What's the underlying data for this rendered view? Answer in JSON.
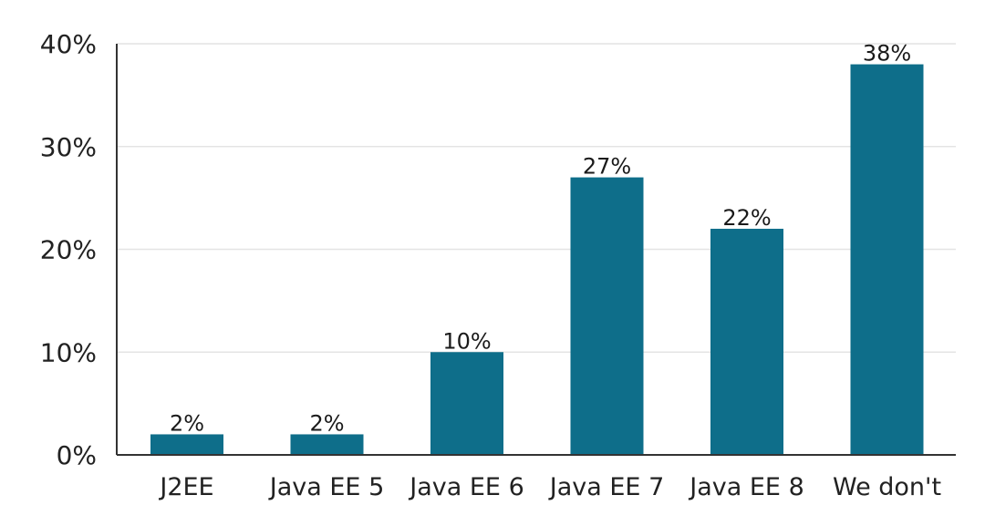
{
  "chart_data": {
    "type": "bar",
    "title": "",
    "xlabel": "",
    "ylabel": "",
    "categories": [
      "J2EE",
      "Java EE 5",
      "Java EE 6",
      "Java EE 7",
      "Java EE 8",
      "We don't"
    ],
    "values": [
      2,
      2,
      10,
      27,
      22,
      38
    ],
    "data_labels": [
      "2%",
      "2%",
      "10%",
      "27%",
      "22%",
      "38%"
    ],
    "ylim": [
      0,
      40
    ],
    "yticks": [
      0,
      10,
      20,
      30,
      40
    ],
    "ytick_labels": [
      "0%",
      "10%",
      "20%",
      "30%",
      "40%"
    ],
    "grid": true,
    "bar_color": "#0e6e8a",
    "grid_color": "#e4e4e4"
  }
}
